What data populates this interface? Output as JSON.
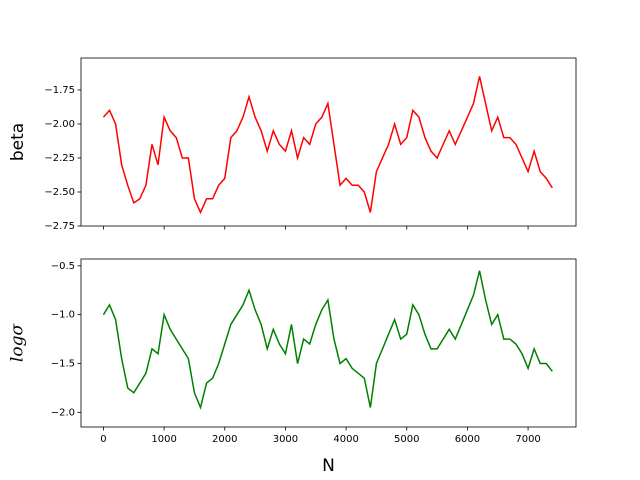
{
  "chart_data": [
    {
      "type": "line",
      "ylabel": "beta",
      "x": [
        0,
        100,
        200,
        300,
        400,
        500,
        600,
        700,
        800,
        900,
        1000,
        1100,
        1200,
        1300,
        1400,
        1500,
        1600,
        1700,
        1800,
        1900,
        2000,
        2100,
        2200,
        2300,
        2400,
        2500,
        2600,
        2700,
        2800,
        2900,
        3000,
        3100,
        3200,
        3300,
        3400,
        3500,
        3600,
        3700,
        3800,
        3900,
        4000,
        4100,
        4200,
        4300,
        4400,
        4500,
        4600,
        4700,
        4800,
        4900,
        5000,
        5100,
        5200,
        5300,
        5400,
        5500,
        5600,
        5700,
        5800,
        5900,
        6000,
        6100,
        6200,
        6300,
        6400,
        6500,
        6600,
        6700,
        6800,
        6900,
        7000,
        7100,
        7200,
        7300,
        7400
      ],
      "series": [
        {
          "color": "#ff0000",
          "values": [
            -1.95,
            -1.9,
            -2.0,
            -2.3,
            -2.45,
            -2.58,
            -2.55,
            -2.45,
            -2.15,
            -2.3,
            -1.95,
            -2.05,
            -2.1,
            -2.25,
            -2.25,
            -2.55,
            -2.65,
            -2.55,
            -2.55,
            -2.45,
            -2.4,
            -2.1,
            -2.05,
            -1.95,
            -1.8,
            -1.95,
            -2.05,
            -2.2,
            -2.05,
            -2.15,
            -2.2,
            -2.05,
            -2.25,
            -2.1,
            -2.15,
            -2.0,
            -1.95,
            -1.85,
            -2.15,
            -2.45,
            -2.4,
            -2.45,
            -2.45,
            -2.5,
            -2.65,
            -2.35,
            -2.25,
            -2.15,
            -2.0,
            -2.15,
            -2.1,
            -1.9,
            -1.95,
            -2.1,
            -2.2,
            -2.25,
            -2.15,
            -2.05,
            -2.15,
            -2.05,
            -1.95,
            -1.85,
            -1.65,
            -1.85,
            -2.05,
            -1.95,
            -2.1,
            -2.1,
            -2.15,
            -2.25,
            -2.35,
            -2.2,
            -2.35,
            -2.4,
            -2.47
          ]
        }
      ],
      "xlim": [
        -370,
        7790
      ],
      "ylim": [
        -2.75,
        -1.515
      ],
      "yticks": [
        {
          "value": -2.75,
          "label": "−2.75"
        },
        {
          "value": -2.5,
          "label": "−2.50"
        },
        {
          "value": -2.25,
          "label": "−2.25"
        },
        {
          "value": -2.0,
          "label": "−2.00"
        },
        {
          "value": -1.75,
          "label": "−1.75"
        }
      ]
    },
    {
      "type": "line",
      "ylabel": "logσ",
      "xlabel": "N",
      "x": [
        0,
        100,
        200,
        300,
        400,
        500,
        600,
        700,
        800,
        900,
        1000,
        1100,
        1200,
        1300,
        1400,
        1500,
        1600,
        1700,
        1800,
        1900,
        2000,
        2100,
        2200,
        2300,
        2400,
        2500,
        2600,
        2700,
        2800,
        2900,
        3000,
        3100,
        3200,
        3300,
        3400,
        3500,
        3600,
        3700,
        3800,
        3900,
        4000,
        4100,
        4200,
        4300,
        4400,
        4500,
        4600,
        4700,
        4800,
        4900,
        5000,
        5100,
        5200,
        5300,
        5400,
        5500,
        5600,
        5700,
        5800,
        5900,
        6000,
        6100,
        6200,
        6300,
        6400,
        6500,
        6600,
        6700,
        6800,
        6900,
        7000,
        7100,
        7200,
        7300,
        7400
      ],
      "series": [
        {
          "color": "#008000",
          "values": [
            -1.0,
            -0.9,
            -1.05,
            -1.45,
            -1.75,
            -1.8,
            -1.7,
            -1.6,
            -1.35,
            -1.4,
            -1.0,
            -1.15,
            -1.25,
            -1.35,
            -1.45,
            -1.8,
            -1.95,
            -1.7,
            -1.65,
            -1.5,
            -1.3,
            -1.1,
            -1.0,
            -0.9,
            -0.75,
            -0.95,
            -1.1,
            -1.35,
            -1.15,
            -1.3,
            -1.4,
            -1.1,
            -1.5,
            -1.25,
            -1.3,
            -1.1,
            -0.95,
            -0.85,
            -1.25,
            -1.5,
            -1.45,
            -1.55,
            -1.6,
            -1.65,
            -1.95,
            -1.5,
            -1.35,
            -1.2,
            -1.05,
            -1.25,
            -1.2,
            -0.9,
            -1.0,
            -1.2,
            -1.35,
            -1.35,
            -1.25,
            -1.15,
            -1.25,
            -1.1,
            -0.95,
            -0.8,
            -0.55,
            -0.85,
            -1.1,
            -1.0,
            -1.25,
            -1.25,
            -1.3,
            -1.4,
            -1.55,
            -1.35,
            -1.5,
            -1.5,
            -1.58
          ]
        }
      ],
      "xlim": [
        -370,
        7790
      ],
      "ylim": [
        -2.15,
        -0.43
      ],
      "xticks": [
        0,
        1000,
        2000,
        3000,
        4000,
        5000,
        6000,
        7000
      ],
      "yticks": [
        {
          "value": -2.0,
          "label": "−2.0"
        },
        {
          "value": -1.5,
          "label": "−1.5"
        },
        {
          "value": -1.0,
          "label": "−1.0"
        },
        {
          "value": -0.5,
          "label": "−0.5"
        }
      ]
    }
  ]
}
